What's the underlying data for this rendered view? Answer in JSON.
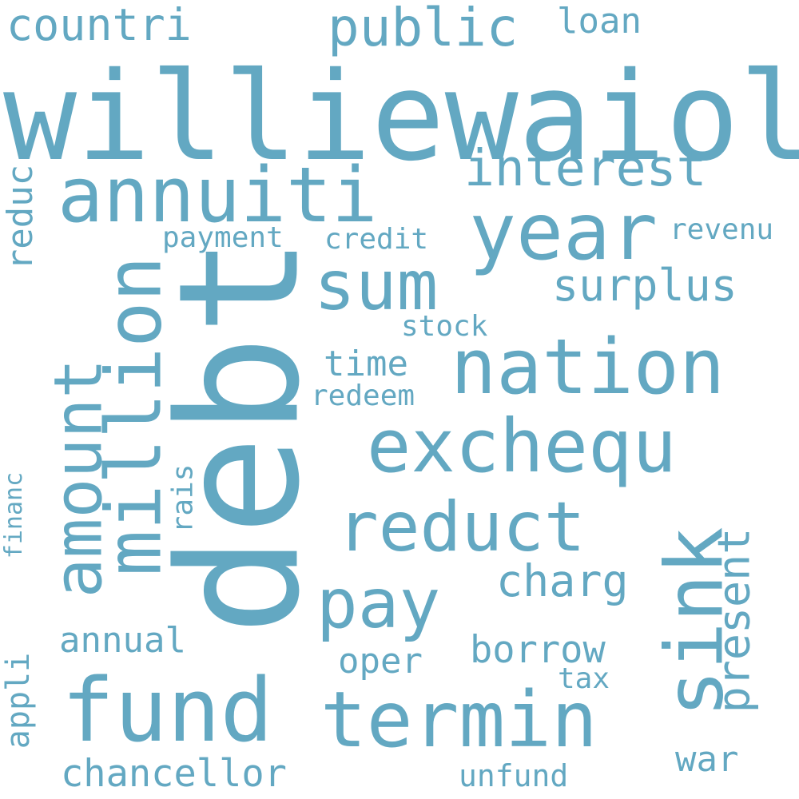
{
  "colors": {
    "background": "#ffffff",
    "word": "#63a8c2"
  },
  "words": [
    {
      "id": "williewaiola",
      "text": "williewaiola"
    },
    {
      "id": "debt",
      "text": "debt"
    },
    {
      "id": "annuiti",
      "text": "annuiti"
    },
    {
      "id": "year",
      "text": "year"
    },
    {
      "id": "nation",
      "text": "nation"
    },
    {
      "id": "exchequ",
      "text": "exchequ"
    },
    {
      "id": "fund",
      "text": "fund"
    },
    {
      "id": "termin",
      "text": "termin"
    },
    {
      "id": "sink",
      "text": "sink"
    },
    {
      "id": "million",
      "text": "million"
    },
    {
      "id": "amount",
      "text": "amount"
    },
    {
      "id": "reduct",
      "text": "reduct"
    },
    {
      "id": "pay",
      "text": "pay"
    },
    {
      "id": "sum",
      "text": "sum"
    },
    {
      "id": "public",
      "text": "public"
    },
    {
      "id": "interest",
      "text": "interest"
    },
    {
      "id": "surplus",
      "text": "surplus"
    },
    {
      "id": "countri",
      "text": "countri"
    },
    {
      "id": "present",
      "text": "present"
    },
    {
      "id": "charg",
      "text": "charg"
    },
    {
      "id": "borrow",
      "text": "borrow"
    },
    {
      "id": "chancellor",
      "text": "chancellor"
    },
    {
      "id": "annual",
      "text": "annual"
    },
    {
      "id": "reduc",
      "text": "reduc"
    },
    {
      "id": "loan",
      "text": "loan"
    },
    {
      "id": "payment",
      "text": "payment"
    },
    {
      "id": "credit",
      "text": "credit"
    },
    {
      "id": "revenu",
      "text": "revenu"
    },
    {
      "id": "oper",
      "text": "oper"
    },
    {
      "id": "time",
      "text": "time"
    },
    {
      "id": "stock",
      "text": "stock"
    },
    {
      "id": "redeem",
      "text": "redeem"
    },
    {
      "id": "unfund",
      "text": "unfund"
    },
    {
      "id": "war",
      "text": "war"
    },
    {
      "id": "tax",
      "text": "tax"
    },
    {
      "id": "rais",
      "text": "rais"
    },
    {
      "id": "appli",
      "text": "appli"
    },
    {
      "id": "financ",
      "text": "financ"
    }
  ]
}
